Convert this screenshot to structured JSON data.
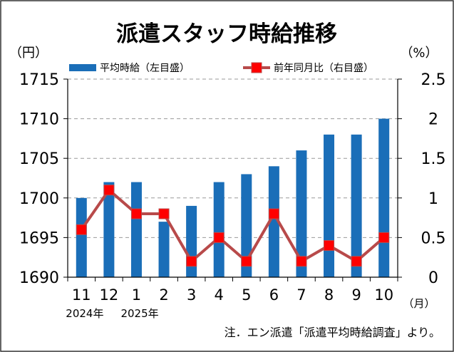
{
  "chart_data": {
    "type": "bar+line",
    "title": "派遣スタッフ時給推移",
    "left_axis_unit": "（円）",
    "right_axis_unit": "（%）",
    "x_unit": "（月）",
    "categories": [
      "11",
      "12",
      "1",
      "2",
      "3",
      "4",
      "5",
      "6",
      "7",
      "8",
      "9",
      "10"
    ],
    "year_labels": [
      {
        "label": "2024年",
        "category_index": 0
      },
      {
        "label": "2025年",
        "category_index": 2
      }
    ],
    "left_axis": {
      "min": 1690,
      "max": 1715,
      "step": 5,
      "ticks": [
        "1690",
        "1695",
        "1700",
        "1705",
        "1710",
        "1715"
      ]
    },
    "right_axis": {
      "min": 0,
      "max": 2.5,
      "step": 0.5,
      "ticks": [
        "0",
        "0.5",
        "1",
        "1.5",
        "2",
        "2.5"
      ]
    },
    "gridlines": "dashed horizontal",
    "series": [
      {
        "name": "平均時給（左目盛）",
        "type": "bar",
        "axis": "left",
        "color": "#1a6eb8",
        "values": [
          1700,
          1702,
          1702,
          1697,
          1699,
          1702,
          1703,
          1704,
          1706,
          1708,
          1708,
          1710
        ]
      },
      {
        "name": "前年同月比（右目盛）",
        "type": "line",
        "axis": "right",
        "color": "#b84a4a",
        "marker_color": "#ff0000",
        "values": [
          0.6,
          1.1,
          0.8,
          0.8,
          0.2,
          0.5,
          0.2,
          0.8,
          0.2,
          0.4,
          0.2,
          0.5
        ]
      }
    ],
    "legend": [
      "平均時給（左目盛）",
      "前年同月比（右目盛）"
    ],
    "note": "注．エン派遣「派遣平均時給調査」より。"
  }
}
